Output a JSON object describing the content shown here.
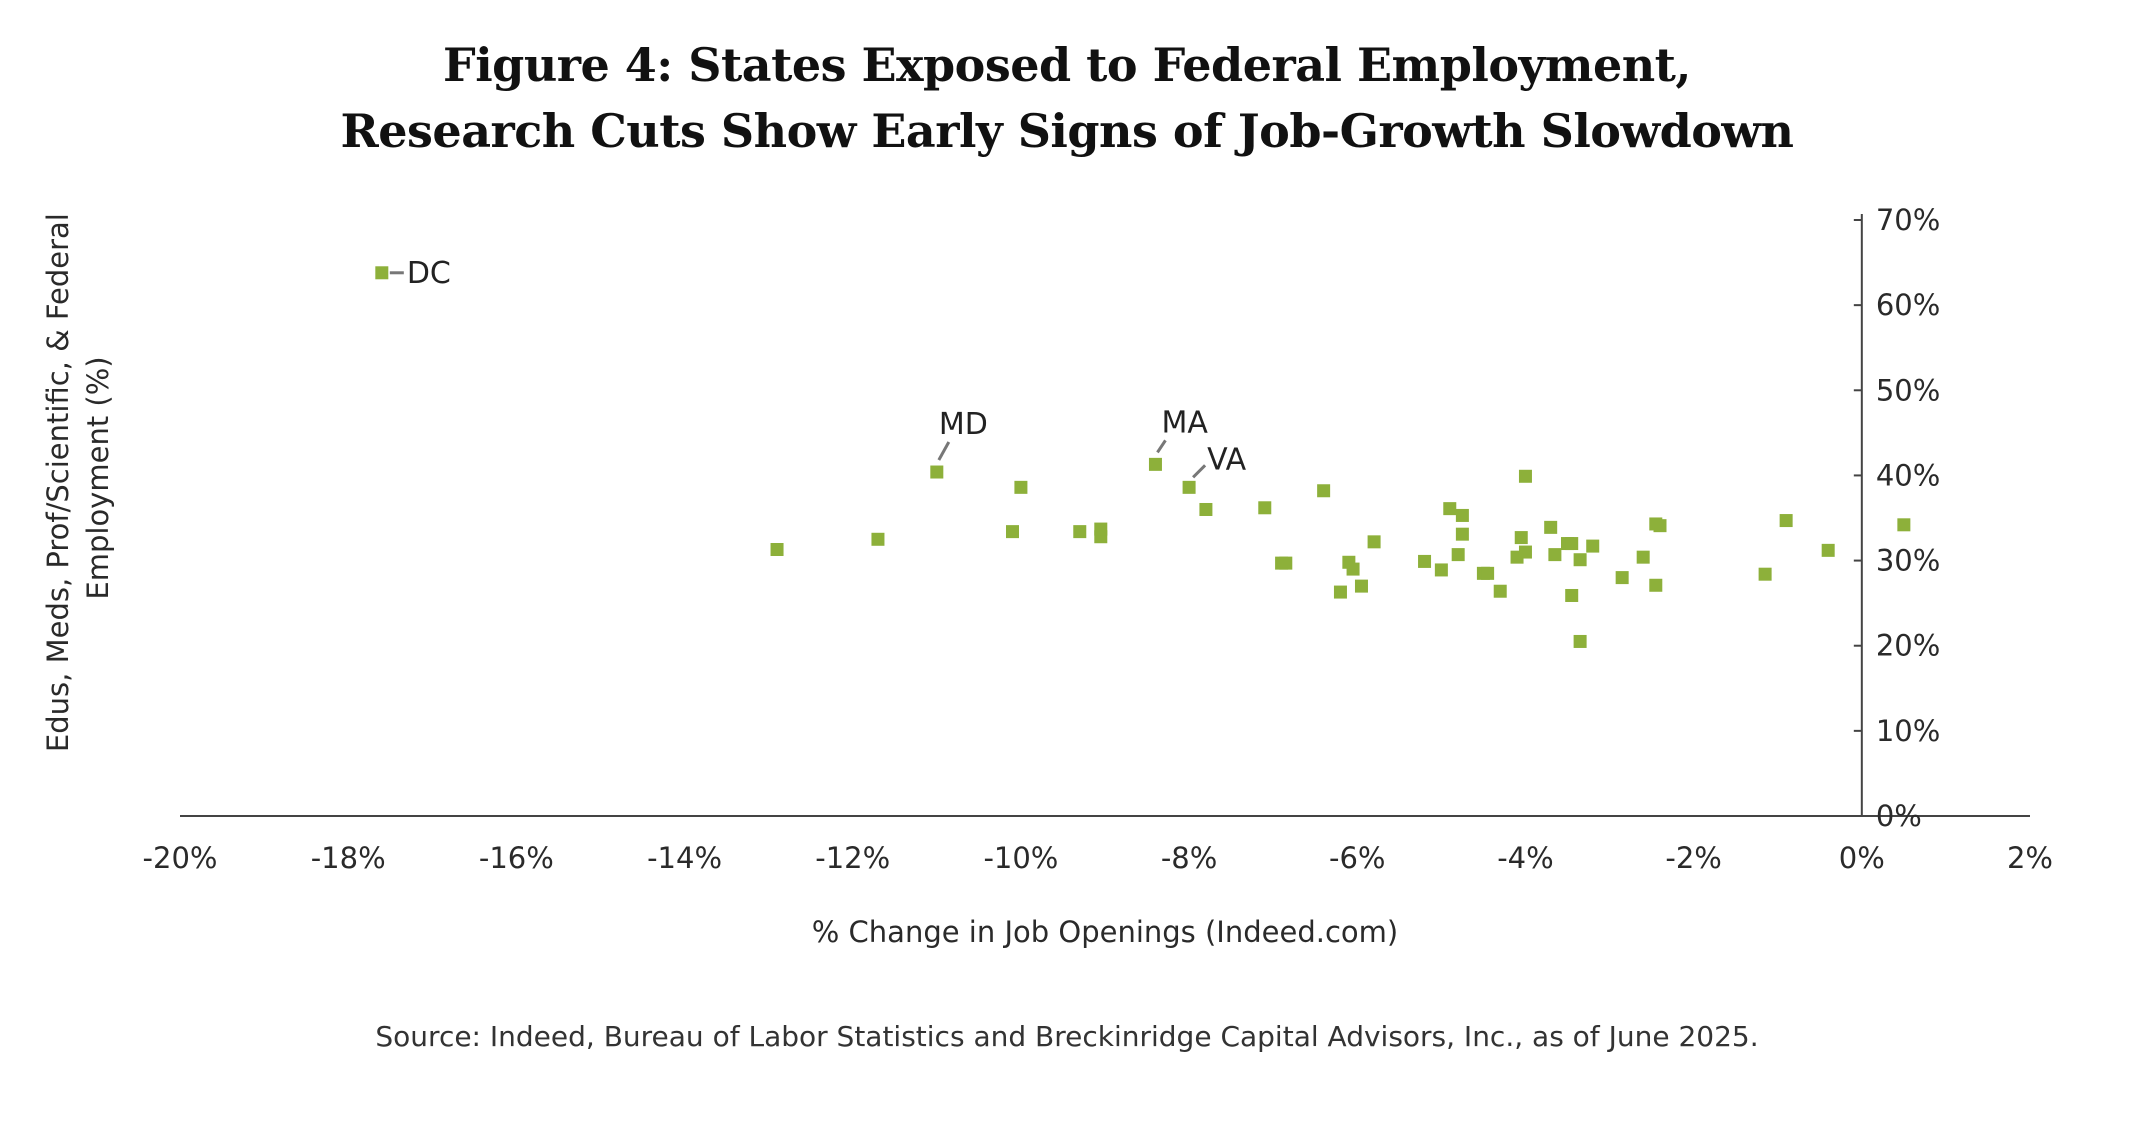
{
  "title": {
    "line1": "Figure 4: States Exposed to Federal Employment,",
    "line2": "Research Cuts Show Early Signs of Job-Growth Slowdown"
  },
  "source": "Source: Indeed, Bureau of Labor Statistics and Breckinridge Capital Advisors, Inc., as of June 2025.",
  "colors": {
    "marker": "#8db03a",
    "axis": "#444444",
    "leader": "#777777"
  },
  "chart_data": {
    "type": "scatter",
    "xlabel": "% Change in Job Openings (Indeed.com)",
    "ylabel_lines": [
      "Edus, Meds, Prof/Scientific, & Federal",
      "Employment (%)"
    ],
    "xlim": [
      -20,
      2
    ],
    "ylim": [
      0,
      70
    ],
    "x_ticks": [
      -20,
      -18,
      -16,
      -14,
      -12,
      -10,
      -8,
      -6,
      -4,
      -2,
      0,
      2
    ],
    "x_tick_labels": [
      "-20%",
      "-18%",
      "-16%",
      "-14%",
      "-12%",
      "-10%",
      "-8%",
      "-6%",
      "-4%",
      "-2%",
      "0%",
      "2%"
    ],
    "y_ticks": [
      0,
      10,
      20,
      30,
      40,
      50,
      60,
      70
    ],
    "y_tick_labels": [
      "0%",
      "10%",
      "20%",
      "30%",
      "40%",
      "50%",
      "60%",
      "70%"
    ],
    "y_axis_position": "x=0, labels on right",
    "grid": false,
    "legend": "none",
    "labeled_points": [
      {
        "label": "DC",
        "x": -17.6,
        "y": 63.8
      },
      {
        "label": "MD",
        "x": -11.0,
        "y": 40.4
      },
      {
        "label": "MA",
        "x": -8.4,
        "y": 41.3
      },
      {
        "label": "VA",
        "x": -8.0,
        "y": 38.6
      }
    ],
    "points": [
      {
        "x": -12.9,
        "y": 31.3
      },
      {
        "x": -11.7,
        "y": 32.5
      },
      {
        "x": -10.1,
        "y": 33.4
      },
      {
        "x": -10.0,
        "y": 38.6
      },
      {
        "x": -9.3,
        "y": 33.4
      },
      {
        "x": -9.05,
        "y": 32.8
      },
      {
        "x": -9.05,
        "y": 33.7
      },
      {
        "x": -7.8,
        "y": 36.0
      },
      {
        "x": -7.1,
        "y": 36.2
      },
      {
        "x": -6.9,
        "y": 29.7
      },
      {
        "x": -6.85,
        "y": 29.7
      },
      {
        "x": -6.4,
        "y": 38.2
      },
      {
        "x": -6.2,
        "y": 26.3
      },
      {
        "x": -6.1,
        "y": 29.8
      },
      {
        "x": -6.05,
        "y": 29.0
      },
      {
        "x": -5.95,
        "y": 27.0
      },
      {
        "x": -5.8,
        "y": 32.2
      },
      {
        "x": -5.2,
        "y": 29.9
      },
      {
        "x": -5.0,
        "y": 28.9
      },
      {
        "x": -4.9,
        "y": 36.1
      },
      {
        "x": -4.8,
        "y": 30.7
      },
      {
        "x": -4.75,
        "y": 35.3
      },
      {
        "x": -4.75,
        "y": 33.1
      },
      {
        "x": -4.5,
        "y": 28.5
      },
      {
        "x": -4.45,
        "y": 28.5
      },
      {
        "x": -4.3,
        "y": 26.4
      },
      {
        "x": -4.1,
        "y": 30.4
      },
      {
        "x": -4.05,
        "y": 32.7
      },
      {
        "x": -4.0,
        "y": 31.0
      },
      {
        "x": -4.0,
        "y": 39.9
      },
      {
        "x": -3.7,
        "y": 33.9
      },
      {
        "x": -3.65,
        "y": 30.7
      },
      {
        "x": -3.5,
        "y": 32.0
      },
      {
        "x": -3.45,
        "y": 32.0
      },
      {
        "x": -3.45,
        "y": 25.9
      },
      {
        "x": -3.35,
        "y": 30.1
      },
      {
        "x": -3.35,
        "y": 20.5
      },
      {
        "x": -3.2,
        "y": 31.7
      },
      {
        "x": -2.85,
        "y": 28.0
      },
      {
        "x": -2.6,
        "y": 30.4
      },
      {
        "x": -2.45,
        "y": 34.3
      },
      {
        "x": -2.4,
        "y": 34.1
      },
      {
        "x": -2.45,
        "y": 27.1
      },
      {
        "x": -1.15,
        "y": 28.4
      },
      {
        "x": -0.9,
        "y": 34.7
      },
      {
        "x": -0.4,
        "y": 31.2
      },
      {
        "x": 0.5,
        "y": 34.2
      }
    ]
  }
}
